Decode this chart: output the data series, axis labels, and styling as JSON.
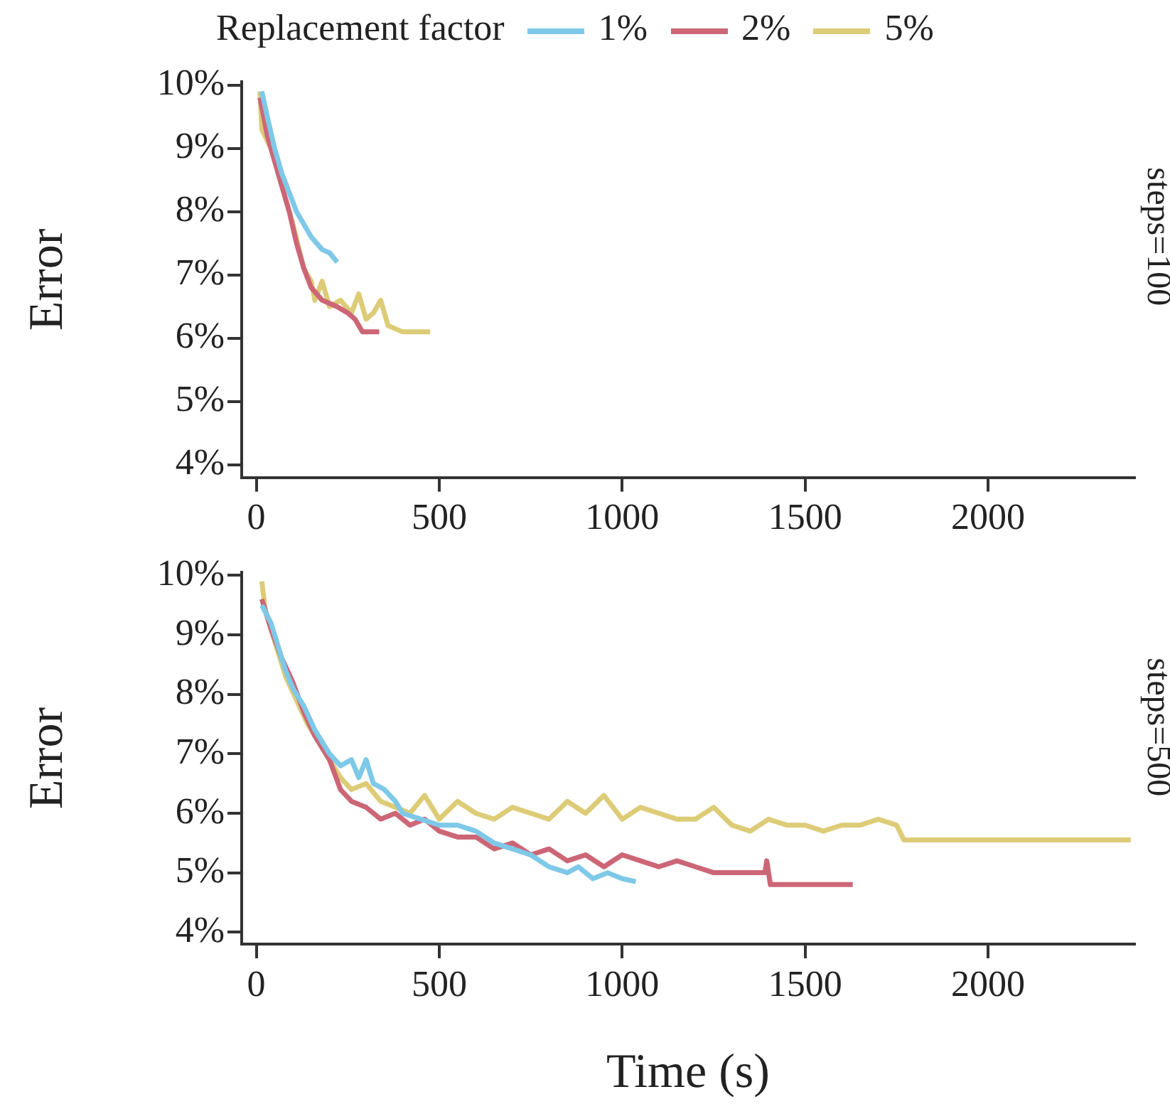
{
  "chart_data": [
    {
      "type": "line",
      "ylabel": "Error",
      "legend_title": "Replacement factor",
      "legend": "top",
      "grid": false,
      "marker": "none",
      "line_style": "solid",
      "annotations": [
        "steps=100"
      ],
      "xlim": [
        -40,
        2400
      ],
      "xticks": [
        0,
        500,
        1000,
        1500,
        2000
      ],
      "ylim": [
        3.8,
        10.05
      ],
      "yticks": [
        {
          "value": 4,
          "label": "4%"
        },
        {
          "value": 5,
          "label": "5%"
        },
        {
          "value": 6,
          "label": "6%"
        },
        {
          "value": 7,
          "label": "7%"
        },
        {
          "value": 8,
          "label": "8%"
        },
        {
          "value": 9,
          "label": "9%"
        },
        {
          "value": 10,
          "label": "10%"
        }
      ],
      "series": [
        {
          "name": "1%",
          "color": "#7ec8e8",
          "x": [
            15,
            30,
            50,
            70,
            90,
            110,
            130,
            150,
            180,
            200,
            221
          ],
          "values": [
            9.9,
            9.5,
            9.0,
            8.6,
            8.3,
            8.0,
            7.8,
            7.6,
            7.4,
            7.35,
            7.2
          ]
        },
        {
          "name": "2%",
          "color": "#cc6677",
          "x": [
            10,
            30,
            60,
            90,
            110,
            130,
            150,
            180,
            220,
            250,
            270,
            290,
            336
          ],
          "values": [
            9.8,
            9.2,
            8.6,
            8.0,
            7.5,
            7.1,
            6.8,
            6.6,
            6.5,
            6.4,
            6.3,
            6.1,
            6.1
          ]
        },
        {
          "name": "5%",
          "color": "#ddcc77",
          "x": [
            10,
            15,
            40,
            70,
            100,
            130,
            150,
            160,
            180,
            200,
            230,
            260,
            280,
            300,
            320,
            340,
            360,
            400,
            475
          ],
          "values": [
            9.9,
            9.3,
            9.0,
            8.4,
            7.8,
            7.1,
            6.9,
            6.6,
            6.9,
            6.5,
            6.6,
            6.4,
            6.7,
            6.3,
            6.4,
            6.6,
            6.2,
            6.1,
            6.1
          ]
        }
      ]
    },
    {
      "type": "line",
      "xlabel": "Time (s)",
      "ylabel": "Error",
      "grid": false,
      "marker": "none",
      "line_style": "solid",
      "annotations": [
        "steps=500"
      ],
      "xlim": [
        -40,
        2400
      ],
      "xticks": [
        0,
        500,
        1000,
        1500,
        2000
      ],
      "ylim": [
        3.8,
        10.05
      ],
      "yticks": [
        {
          "value": 4,
          "label": "4%"
        },
        {
          "value": 5,
          "label": "5%"
        },
        {
          "value": 6,
          "label": "6%"
        },
        {
          "value": 7,
          "label": "7%"
        },
        {
          "value": 8,
          "label": "8%"
        },
        {
          "value": 9,
          "label": "9%"
        },
        {
          "value": 10,
          "label": "10%"
        }
      ],
      "series": [
        {
          "color": "#7ec8e8",
          "x": [
            15,
            40,
            60,
            80,
            100,
            130,
            160,
            200,
            230,
            260,
            280,
            300,
            320,
            350,
            380,
            400,
            450,
            500,
            550,
            600,
            650,
            700,
            750,
            800,
            850,
            880,
            920,
            960,
            1000,
            1037
          ],
          "values": [
            9.5,
            9.2,
            8.8,
            8.4,
            8.1,
            7.8,
            7.4,
            7.0,
            6.8,
            6.9,
            6.6,
            6.9,
            6.5,
            6.4,
            6.2,
            6.0,
            5.9,
            5.8,
            5.8,
            5.7,
            5.5,
            5.4,
            5.3,
            5.1,
            5.0,
            5.1,
            4.9,
            5.0,
            4.9,
            4.85
          ]
        },
        {
          "color": "#cc6677",
          "x": [
            15,
            40,
            70,
            100,
            130,
            160,
            200,
            230,
            260,
            300,
            340,
            380,
            420,
            460,
            500,
            550,
            600,
            650,
            700,
            750,
            800,
            850,
            900,
            950,
            1000,
            1050,
            1100,
            1150,
            1200,
            1250,
            1300,
            1390,
            1395,
            1405,
            1630
          ],
          "values": [
            9.6,
            9.1,
            8.6,
            8.2,
            7.7,
            7.3,
            6.9,
            6.4,
            6.2,
            6.1,
            5.9,
            6.0,
            5.8,
            5.9,
            5.7,
            5.6,
            5.6,
            5.4,
            5.5,
            5.3,
            5.4,
            5.2,
            5.3,
            5.1,
            5.3,
            5.2,
            5.1,
            5.2,
            5.1,
            5.0,
            5.0,
            5.0,
            5.2,
            4.8,
            4.8
          ]
        },
        {
          "color": "#ddcc77",
          "x": [
            15,
            25,
            50,
            80,
            110,
            140,
            170,
            200,
            230,
            260,
            300,
            340,
            380,
            420,
            460,
            500,
            550,
            600,
            650,
            700,
            750,
            800,
            850,
            900,
            950,
            1000,
            1050,
            1100,
            1150,
            1200,
            1250,
            1300,
            1350,
            1400,
            1450,
            1500,
            1550,
            1600,
            1650,
            1700,
            1750,
            1770,
            2390
          ],
          "values": [
            9.9,
            9.4,
            8.9,
            8.3,
            7.9,
            7.5,
            7.2,
            6.9,
            6.6,
            6.4,
            6.5,
            6.2,
            6.1,
            6.0,
            6.3,
            5.9,
            6.2,
            6.0,
            5.9,
            6.1,
            6.0,
            5.9,
            6.2,
            6.0,
            6.3,
            5.9,
            6.1,
            6.0,
            5.9,
            5.9,
            6.1,
            5.8,
            5.7,
            5.9,
            5.8,
            5.8,
            5.7,
            5.8,
            5.8,
            5.9,
            5.8,
            5.55,
            5.55
          ]
        }
      ]
    }
  ]
}
